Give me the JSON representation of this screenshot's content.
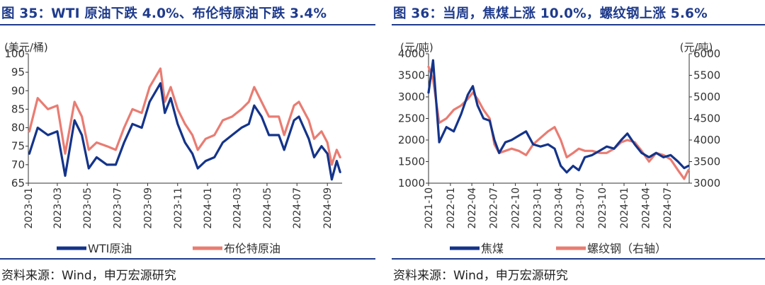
{
  "colors": {
    "title": "#1f3b8c",
    "navy": "#14348a",
    "salmon": "#e97c72",
    "rule": "#1f3b8c"
  },
  "left": {
    "title": "图 35：WTI 原油下跌 4.0%、布伦特原油下跌 3.4%",
    "source": "资料来源：Wind，申万宏源研究",
    "chart_data": {
      "type": "line",
      "title": "图 35：WTI 原油下跌 4.0%、布伦特原油下跌 3.4%",
      "unit": "(美元/桶)",
      "ylim": [
        65,
        100
      ],
      "yticks": [
        65,
        70,
        75,
        80,
        85,
        90,
        95,
        100
      ],
      "xticks": [
        "2023-01",
        "2023-03",
        "2023-05",
        "2023-07",
        "2023-09",
        "2023-11",
        "2024-01",
        "2024-03",
        "2024-05",
        "2024-07",
        "2024-09"
      ],
      "xlim": [
        "2023-01",
        "2024-10"
      ],
      "grid": false,
      "legend_position": "bottom",
      "series": [
        {
          "name": "WTI原油",
          "color": "#14348a",
          "x": [
            "2023-01-03",
            "2023-01-20",
            "2023-02-10",
            "2023-03-01",
            "2023-03-17",
            "2023-04-05",
            "2023-04-20",
            "2023-05-04",
            "2023-05-20",
            "2023-06-10",
            "2023-06-28",
            "2023-07-15",
            "2023-08-01",
            "2023-08-20",
            "2023-09-05",
            "2023-09-27",
            "2023-10-06",
            "2023-10-18",
            "2023-11-01",
            "2023-11-16",
            "2023-12-01",
            "2023-12-12",
            "2023-12-28",
            "2024-01-15",
            "2024-02-01",
            "2024-02-20",
            "2024-03-10",
            "2024-03-25",
            "2024-04-05",
            "2024-04-20",
            "2024-05-05",
            "2024-05-25",
            "2024-06-05",
            "2024-06-25",
            "2024-07-05",
            "2024-07-25",
            "2024-08-05",
            "2024-08-20",
            "2024-09-01",
            "2024-09-10",
            "2024-09-20",
            "2024-09-27"
          ],
          "values": [
            73,
            80,
            78,
            79,
            67,
            82,
            78,
            69,
            72,
            70,
            70,
            76,
            81,
            80,
            87,
            92,
            84,
            88,
            81,
            76,
            73,
            69,
            71,
            72,
            76,
            78,
            80,
            81,
            86,
            83,
            78,
            78,
            74,
            82,
            83,
            77,
            72,
            75,
            73,
            66,
            71,
            68
          ]
        },
        {
          "name": "布伦特原油",
          "color": "#e97c72",
          "x": [
            "2023-01-03",
            "2023-01-20",
            "2023-02-10",
            "2023-03-01",
            "2023-03-17",
            "2023-04-05",
            "2023-04-20",
            "2023-05-04",
            "2023-05-20",
            "2023-06-10",
            "2023-06-28",
            "2023-07-15",
            "2023-08-01",
            "2023-08-20",
            "2023-09-05",
            "2023-09-27",
            "2023-10-06",
            "2023-10-18",
            "2023-11-01",
            "2023-11-16",
            "2023-12-01",
            "2023-12-12",
            "2023-12-28",
            "2024-01-15",
            "2024-02-01",
            "2024-02-20",
            "2024-03-10",
            "2024-03-25",
            "2024-04-05",
            "2024-04-20",
            "2024-05-05",
            "2024-05-25",
            "2024-06-05",
            "2024-06-25",
            "2024-07-05",
            "2024-07-25",
            "2024-08-05",
            "2024-08-20",
            "2024-09-01",
            "2024-09-10",
            "2024-09-20",
            "2024-09-27"
          ],
          "values": [
            79,
            88,
            85,
            86,
            73,
            87,
            83,
            74,
            76,
            75,
            74,
            80,
            85,
            84,
            91,
            96,
            87,
            91,
            85,
            81,
            78,
            74,
            77,
            78,
            82,
            83,
            85,
            87,
            91,
            87,
            83,
            83,
            78,
            86,
            87,
            82,
            77,
            79,
            76,
            70,
            74,
            72
          ]
        }
      ]
    }
  },
  "right": {
    "title": "图 36：当周，焦煤上涨 10.0%，螺纹钢上涨 5.6%",
    "source": "资料来源：Wind，申万宏源研究",
    "chart_data": {
      "type": "line",
      "title": "图 36：当周，焦煤上涨 10.0%，螺纹钢上涨 5.6%",
      "unit_left": "(元/吨)",
      "unit_right": "(元/吨)",
      "ylim": [
        1000,
        4000
      ],
      "yticks": [
        1000,
        1500,
        2000,
        2500,
        3000,
        3500,
        4000
      ],
      "ylim_right": [
        3000,
        6000
      ],
      "yticks_right": [
        3000,
        3500,
        4000,
        4500,
        5000,
        5500,
        6000
      ],
      "xticks": [
        "2021-10",
        "2022-01",
        "2022-04",
        "2022-07",
        "2022-10",
        "2023-01",
        "2023-04",
        "2023-07",
        "2023-10",
        "2024-01",
        "2024-04",
        "2024-07"
      ],
      "xlim": [
        "2021-10",
        "2024-10"
      ],
      "grid": false,
      "legend_position": "bottom",
      "series": [
        {
          "name": "焦煤",
          "axis": "left",
          "color": "#14348a",
          "x": [
            "2021-10-01",
            "2021-10-20",
            "2021-11-15",
            "2021-12-15",
            "2022-01-15",
            "2022-02-15",
            "2022-03-15",
            "2022-04-05",
            "2022-04-25",
            "2022-05-20",
            "2022-06-15",
            "2022-07-05",
            "2022-07-25",
            "2022-08-20",
            "2022-09-15",
            "2022-10-15",
            "2022-11-15",
            "2022-12-15",
            "2023-01-15",
            "2023-02-15",
            "2023-03-15",
            "2023-04-10",
            "2023-05-05",
            "2023-06-01",
            "2023-06-25",
            "2023-07-20",
            "2023-08-20",
            "2023-09-20",
            "2023-10-20",
            "2023-11-20",
            "2023-12-20",
            "2024-01-15",
            "2024-02-15",
            "2024-03-15",
            "2024-04-15",
            "2024-05-15",
            "2024-06-15",
            "2024-07-15",
            "2024-08-15",
            "2024-09-10",
            "2024-09-27"
          ],
          "values": [
            3100,
            3850,
            1950,
            2300,
            2200,
            2600,
            3050,
            3250,
            2800,
            2500,
            2450,
            2000,
            1700,
            1950,
            2000,
            2100,
            2200,
            1900,
            1850,
            1900,
            1800,
            1400,
            1250,
            1400,
            1300,
            1600,
            1650,
            1750,
            1850,
            1800,
            2000,
            2150,
            1900,
            1700,
            1600,
            1700,
            1600,
            1650,
            1500,
            1350,
            1400
          ]
        },
        {
          "name": "螺纹钢（右轴）",
          "axis": "right",
          "color": "#e97c72",
          "x": [
            "2021-10-01",
            "2021-10-20",
            "2021-11-15",
            "2021-12-15",
            "2022-01-15",
            "2022-02-15",
            "2022-03-15",
            "2022-04-05",
            "2022-04-25",
            "2022-05-20",
            "2022-06-15",
            "2022-07-05",
            "2022-07-25",
            "2022-08-20",
            "2022-09-15",
            "2022-10-15",
            "2022-11-15",
            "2022-12-15",
            "2023-01-15",
            "2023-02-15",
            "2023-03-15",
            "2023-04-10",
            "2023-05-05",
            "2023-06-01",
            "2023-06-25",
            "2023-07-20",
            "2023-08-20",
            "2023-09-20",
            "2023-10-20",
            "2023-11-20",
            "2023-12-20",
            "2024-01-15",
            "2024-02-15",
            "2024-03-15",
            "2024-04-15",
            "2024-05-15",
            "2024-06-15",
            "2024-07-15",
            "2024-08-15",
            "2024-09-10",
            "2024-09-27"
          ],
          "values": [
            5700,
            5400,
            4400,
            4500,
            4700,
            4800,
            4950,
            5100,
            4950,
            4700,
            4500,
            3900,
            3700,
            3750,
            3800,
            3750,
            3650,
            3900,
            4050,
            4200,
            4300,
            4000,
            3600,
            3700,
            3800,
            3750,
            3750,
            3700,
            3700,
            3800,
            3950,
            4000,
            3950,
            3750,
            3500,
            3700,
            3650,
            3550,
            3300,
            3100,
            3300
          ]
        }
      ]
    }
  }
}
